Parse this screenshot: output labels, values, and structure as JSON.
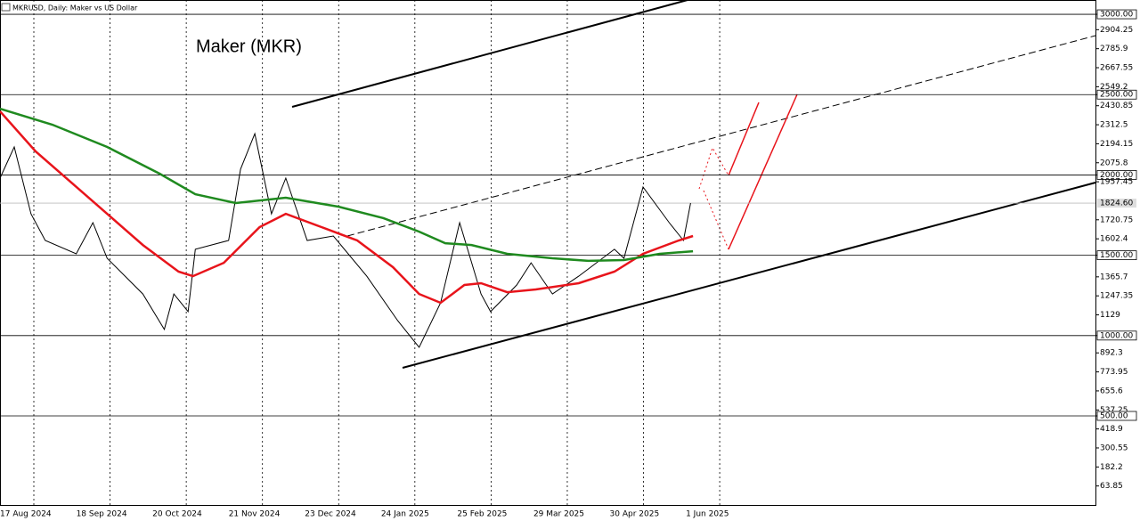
{
  "chart_data": {
    "type": "line",
    "title": "MKRUSD, Daily: Maker vs US Dollar",
    "annotation": "Maker (MKR)",
    "xlim": [
      "2024-08-17",
      "2025-11-20"
    ],
    "xticks": [
      {
        "value": "2024-08-17",
        "label": "17 Aug 2024"
      },
      {
        "value": "2024-09-18",
        "label": "18 Sep 2024"
      },
      {
        "value": "2024-10-20",
        "label": "20 Oct 2024"
      },
      {
        "value": "2024-11-21",
        "label": "21 Nov 2024"
      },
      {
        "value": "2024-12-23",
        "label": "23 Dec 2024"
      },
      {
        "value": "2025-01-24",
        "label": "24 Jan 2025"
      },
      {
        "value": "2025-02-25",
        "label": "25 Feb 2025"
      },
      {
        "value": "2025-03-29",
        "label": "29 Mar 2025"
      },
      {
        "value": "2025-04-30",
        "label": "30 Apr 2025"
      },
      {
        "value": "2025-06-01",
        "label": "1 Jun 2025"
      }
    ],
    "ylim": [
      -60,
      3089
    ],
    "yticks": [
      {
        "value": 3000,
        "label": "3000.00"
      },
      2904.25,
      2785.9,
      2667.55,
      2549.2,
      {
        "value": 2500,
        "label": "2500.00"
      },
      2430.85,
      2312.5,
      2194.15,
      2075.8,
      {
        "value": 2000,
        "label": "2000.00"
      },
      1957.45,
      1720.75,
      1602.4,
      {
        "value": 1500,
        "label": "1500.00"
      },
      1365.7,
      1247.35,
      1129,
      {
        "value": 1000,
        "label": "1000.00"
      },
      892.3,
      773.95,
      655.6,
      537.25,
      {
        "value": 500,
        "label": "500.00"
      },
      418.9,
      300.55,
      182.2,
      63.85
    ],
    "levels": [
      3000,
      2500,
      2000,
      1500,
      1000,
      500
    ],
    "last_price": {
      "value": 1824.6,
      "label": "1824.60"
    },
    "series": [
      {
        "color": "#000000",
        "x": [
          "2024-08-17",
          "2024-08-23",
          "2024-08-30",
          "2024-09-05",
          "2024-09-18",
          "2024-09-25",
          "2024-10-01",
          "2024-10-16",
          "2024-10-25",
          "2024-10-29",
          "2024-11-04",
          "2024-11-07",
          "2024-11-21",
          "2024-11-26",
          "2024-12-02",
          "2024-12-09",
          "2024-12-15",
          "2024-12-24",
          "2025-01-04",
          "2025-01-18",
          "2025-01-31",
          "2025-02-09",
          "2025-02-18",
          "2025-02-26",
          "2025-03-07",
          "2025-03-11",
          "2025-03-22",
          "2025-03-28",
          "2025-04-06",
          "2025-04-17",
          "2025-05-02",
          "2025-05-06",
          "2025-05-14",
          "2025-05-25",
          "2025-05-31",
          "2025-06-03"
        ],
        "values": [
          1980,
          2174,
          1758,
          1592,
          1509,
          1703,
          1481,
          1259,
          1038,
          1259,
          1149,
          1537,
          1592,
          2036,
          2257,
          1758,
          1980,
          1592,
          1620,
          1370,
          1093,
          927,
          1204,
          1703,
          1259,
          1149,
          1315,
          1453,
          1259,
          1370,
          1537,
          1481,
          1925,
          1703,
          1592,
          1825
        ]
      },
      {
        "color": "#e8141b",
        "x": [
          "2024-08-17",
          "2024-09-01",
          "2024-09-16",
          "2024-10-01",
          "2024-10-16",
          "2024-10-31",
          "2024-11-06",
          "2024-11-19",
          "2024-12-04",
          "2024-12-15",
          "2024-12-30",
          "2025-01-14",
          "2025-01-29",
          "2025-02-09",
          "2025-02-18",
          "2025-02-28",
          "2025-03-07",
          "2025-03-18",
          "2025-03-30",
          "2025-04-17",
          "2025-05-02",
          "2025-05-14",
          "2025-05-29",
          "2025-06-04"
        ],
        "values": [
          2396,
          2146,
          1952,
          1758,
          1564,
          1398,
          1370,
          1453,
          1675,
          1758,
          1675,
          1592,
          1426,
          1259,
          1204,
          1315,
          1326,
          1270,
          1287,
          1326,
          1398,
          1509,
          1592,
          1620
        ]
      },
      {
        "color": "#1f8a1f",
        "x": [
          "2024-08-17",
          "2024-09-08",
          "2024-10-01",
          "2024-10-23",
          "2024-11-07",
          "2024-11-24",
          "2024-12-15",
          "2025-01-06",
          "2025-01-25",
          "2025-02-09",
          "2025-02-20",
          "2025-03-03",
          "2025-03-18",
          "2025-04-06",
          "2025-04-21",
          "2025-05-06",
          "2025-05-21",
          "2025-06-04"
        ],
        "values": [
          2412,
          2313,
          2174,
          2008,
          1880,
          1825,
          1858,
          1803,
          1731,
          1647,
          1575,
          1564,
          1509,
          1481,
          1465,
          1470,
          1509,
          1525
        ]
      }
    ]
  }
}
